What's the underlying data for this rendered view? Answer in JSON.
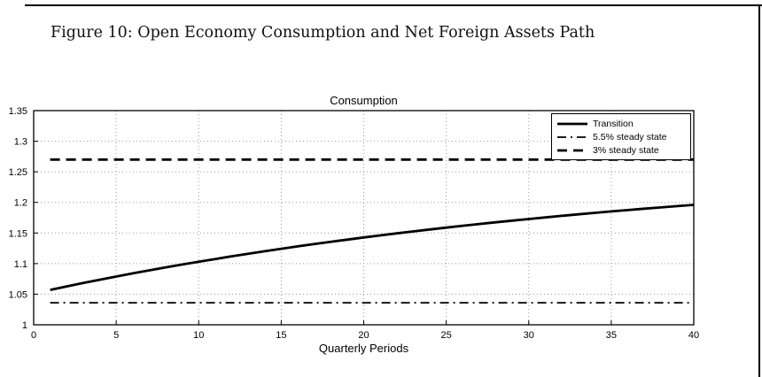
{
  "page": {
    "caption": "Figure 10: Open Economy Consumption and Net Foreign Assets Path",
    "background": "#ffffff",
    "line_color": "#000000"
  },
  "chart_data": {
    "type": "line",
    "title": "Consumption",
    "xlabel": "Quarterly Periods",
    "ylabel": "",
    "xlim": [
      0,
      40
    ],
    "ylim": [
      1.0,
      1.35
    ],
    "xticks": [
      0,
      5,
      10,
      15,
      20,
      25,
      30,
      35,
      40
    ],
    "xtick_labels": [
      "0",
      "5",
      "10",
      "15",
      "20",
      "25",
      "30",
      "35",
      "40"
    ],
    "yticks": [
      1.0,
      1.05,
      1.1,
      1.15,
      1.2,
      1.25,
      1.3,
      1.35
    ],
    "ytick_labels": [
      "1",
      "1.05",
      "1.1",
      "1.15",
      "1.2",
      "1.25",
      "1.3",
      "1.35"
    ],
    "grid": true,
    "legend_position": "top-right",
    "series": [
      {
        "name": "Transition",
        "style": "solid",
        "x": [
          1,
          2,
          3,
          4,
          5,
          6,
          7,
          8,
          9,
          10,
          11,
          12,
          13,
          14,
          15,
          16,
          17,
          18,
          19,
          20,
          21,
          22,
          23,
          24,
          25,
          26,
          27,
          28,
          29,
          30,
          31,
          32,
          33,
          34,
          35,
          36,
          37,
          38,
          39,
          40
        ],
        "y": [
          1.057,
          1.0627,
          1.0682,
          1.0736,
          1.0788,
          1.084,
          1.0889,
          1.0938,
          1.0985,
          1.1031,
          1.1075,
          1.1119,
          1.1161,
          1.1202,
          1.1242,
          1.1281,
          1.1319,
          1.1356,
          1.1392,
          1.1427,
          1.1461,
          1.1494,
          1.1526,
          1.1558,
          1.1588,
          1.1618,
          1.1647,
          1.1675,
          1.1702,
          1.1729,
          1.1755,
          1.178,
          1.1805,
          1.1829,
          1.1852,
          1.1875,
          1.1897,
          1.1918,
          1.1939,
          1.196
        ]
      },
      {
        "name": "5.5% steady state",
        "style": "dash-dot",
        "x": [
          1,
          40
        ],
        "y": [
          1.036,
          1.036
        ]
      },
      {
        "name": "3% steady state",
        "style": "dashed",
        "x": [
          1,
          40
        ],
        "y": [
          1.27,
          1.27
        ]
      }
    ]
  }
}
